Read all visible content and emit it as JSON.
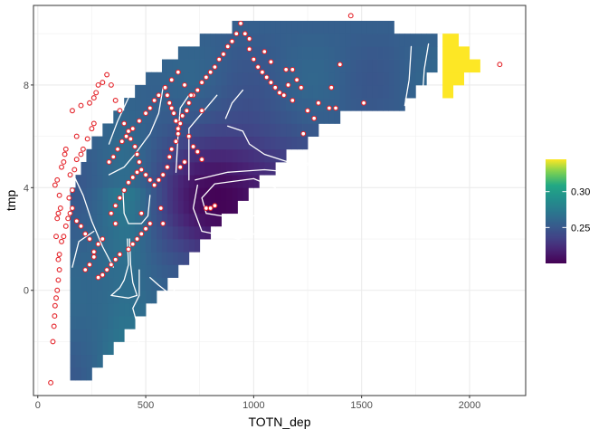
{
  "chart_data": {
    "type": "heatmap",
    "subtype": "raster-with-contours-and-points",
    "xlabel": "TOTN_dep",
    "ylabel": "tmp",
    "xlim": [
      -20,
      2260
    ],
    "ylim": [
      -4.1,
      11.1
    ],
    "x_ticks": [
      0,
      500,
      1000,
      1500,
      2000
    ],
    "y_ticks": [
      0,
      4,
      8
    ],
    "grid": true,
    "legend": {
      "position": "right",
      "type": "colorbar",
      "colormap": "viridis",
      "range": [
        0.2,
        0.345
      ],
      "ticks": [
        0.25,
        0.3
      ],
      "tick_labels": [
        "0.25",
        "0.30"
      ]
    },
    "cell_size": {
      "x": 25,
      "y": 0.5
    },
    "domain_rows": [
      {
        "y": -3.5,
        "x0": 150,
        "x1": 250
      },
      {
        "y": -3.0,
        "x0": 150,
        "x1": 300
      },
      {
        "y": -2.5,
        "x0": 150,
        "x1": 350
      },
      {
        "y": -2.0,
        "x0": 150,
        "x1": 400
      },
      {
        "y": -1.5,
        "x0": 150,
        "x1": 450
      },
      {
        "y": -1.0,
        "x0": 150,
        "x1": 500
      },
      {
        "y": -0.5,
        "x0": 150,
        "x1": 550
      },
      {
        "y": 0.0,
        "x0": 150,
        "x1": 600
      },
      {
        "y": 0.5,
        "x0": 150,
        "x1": 650
      },
      {
        "y": 1.0,
        "x0": 150,
        "x1": 700
      },
      {
        "y": 1.5,
        "x0": 150,
        "x1": 750
      },
      {
        "y": 2.0,
        "x0": 150,
        "x1": 800
      },
      {
        "y": 2.5,
        "x0": 150,
        "x1": 850
      },
      {
        "y": 3.0,
        "x0": 150,
        "x1": 925
      },
      {
        "y": 3.5,
        "x0": 150,
        "x1": 975
      },
      {
        "y": 4.0,
        "x0": 175,
        "x1": 1025
      },
      {
        "y": 4.5,
        "x0": 200,
        "x1": 1100
      },
      {
        "y": 5.0,
        "x0": 225,
        "x1": 1150
      },
      {
        "y": 5.5,
        "x0": 250,
        "x1": 1250
      },
      {
        "y": 6.0,
        "x0": 300,
        "x1": 1300
      },
      {
        "y": 6.5,
        "x0": 350,
        "x1": 1400
      },
      {
        "y": 7.0,
        "x0": 400,
        "x1": 1700
      },
      {
        "y": 7.5,
        "x0": 450,
        "x1": 1750
      },
      {
        "y": 8.0,
        "x0": 500,
        "x1": 1800
      },
      {
        "y": 8.5,
        "x0": 575,
        "x1": 1850
      },
      {
        "y": 9.0,
        "x0": 650,
        "x1": 1850
      },
      {
        "y": 9.5,
        "x0": 750,
        "x1": 1850
      },
      {
        "y": 10.0,
        "x0": 900,
        "x1": 1650
      }
    ],
    "yellow_region_rows": [
      {
        "y": 7.5,
        "x0": 1875,
        "x1": 1925
      },
      {
        "y": 8.0,
        "x0": 1875,
        "x1": 1975
      },
      {
        "y": 8.5,
        "x0": 1875,
        "x1": 2050
      },
      {
        "y": 9.0,
        "x0": 1875,
        "x1": 2000
      },
      {
        "y": 9.5,
        "x0": 1875,
        "x1": 1950
      }
    ],
    "field_model": {
      "base": 0.255,
      "low_center": [
        900,
        3.5
      ],
      "low_depth": 0.055,
      "low_spread": [
        330,
        2.6
      ],
      "left_band_center": 420,
      "left_band_gain": 0.018
    },
    "contours": [
      [
        [
          780,
          3.0
        ],
        [
          760,
          3.6
        ],
        [
          820,
          4.15
        ],
        [
          1000,
          4.35
        ],
        [
          1100,
          4.0
        ],
        [
          1080,
          3.1
        ],
        [
          1000,
          2.9
        ],
        [
          850,
          2.9
        ],
        [
          780,
          3.0
        ]
      ],
      [
        [
          740,
          4.1
        ],
        [
          720,
          3.2
        ],
        [
          760,
          2.3
        ],
        [
          930,
          2.0
        ],
        [
          1150,
          2.6
        ]
      ],
      [
        [
          730,
          4.3
        ],
        [
          880,
          4.6
        ],
        [
          1050,
          4.7
        ],
        [
          1180,
          4.6
        ],
        [
          1300,
          5.1
        ],
        [
          1420,
          5.3
        ]
      ],
      [
        [
          700,
          4.3
        ],
        [
          700,
          6.3
        ],
        [
          760,
          6.9
        ],
        [
          830,
          7.6
        ]
      ],
      [
        [
          880,
          6.4
        ],
        [
          950,
          6.2
        ],
        [
          980,
          5.7
        ],
        [
          1050,
          5.3
        ],
        [
          1160,
          5.0
        ],
        [
          1260,
          4.95
        ]
      ],
      [
        [
          870,
          6.7
        ],
        [
          900,
          7.3
        ],
        [
          950,
          7.8
        ]
      ],
      [
        [
          1700,
          7.2
        ],
        [
          1720,
          8.2
        ],
        [
          1730,
          9.5
        ]
      ],
      [
        [
          1780,
          7.3
        ],
        [
          1790,
          8.6
        ],
        [
          1810,
          9.6
        ]
      ],
      [
        [
          415,
          2.0
        ],
        [
          420,
          1.0
        ],
        [
          400,
          0.4
        ],
        [
          380,
          0.1
        ],
        [
          340,
          -0.2
        ],
        [
          420,
          -0.3
        ],
        [
          460,
          -0.2
        ],
        [
          440,
          0.3
        ],
        [
          430,
          1.0
        ],
        [
          425,
          2.0
        ]
      ],
      [
        [
          395,
          3.8
        ],
        [
          400,
          3.0
        ],
        [
          420,
          2.6
        ],
        [
          480,
          2.6
        ],
        [
          510,
          2.9
        ],
        [
          520,
          3.7
        ]
      ],
      [
        [
          330,
          4.5
        ],
        [
          400,
          4.8
        ],
        [
          450,
          5.3
        ],
        [
          520,
          6.1
        ],
        [
          560,
          6.9
        ],
        [
          580,
          7.9
        ]
      ],
      [
        [
          470,
          0.8
        ],
        [
          470,
          -0.2
        ],
        [
          440,
          -0.7
        ],
        [
          460,
          -1.3
        ],
        [
          470,
          -2.3
        ]
      ],
      [
        [
          260,
          2.3
        ],
        [
          190,
          1.9
        ],
        [
          160,
          0.9
        ]
      ],
      [
        [
          350,
          0.9
        ],
        [
          300,
          1.7
        ],
        [
          250,
          2.7
        ],
        [
          210,
          3.7
        ],
        [
          160,
          4.6
        ]
      ],
      [
        [
          520,
          0.5
        ],
        [
          560,
          0.2
        ],
        [
          620,
          -0.2
        ],
        [
          660,
          0.5
        ]
      ],
      [
        [
          640,
          4.6
        ],
        [
          650,
          6.1
        ],
        [
          660,
          7.1
        ],
        [
          700,
          7.6
        ]
      ],
      [
        [
          330,
          5.7
        ],
        [
          370,
          6.6
        ],
        [
          420,
          7.5
        ]
      ]
    ],
    "points": [
      [
        60,
        -3.6
      ],
      [
        70,
        -2.0
      ],
      [
        75,
        -1.4
      ],
      [
        78,
        -1.0
      ],
      [
        80,
        -0.6
      ],
      [
        85,
        -0.3
      ],
      [
        90,
        0.0
      ],
      [
        95,
        0.4
      ],
      [
        100,
        0.8
      ],
      [
        95,
        1.2
      ],
      [
        100,
        1.4
      ],
      [
        85,
        2.1
      ],
      [
        90,
        2.8
      ],
      [
        95,
        3.0
      ],
      [
        105,
        3.2
      ],
      [
        100,
        3.7
      ],
      [
        80,
        4.1
      ],
      [
        90,
        4.3
      ],
      [
        110,
        4.8
      ],
      [
        120,
        5.0
      ],
      [
        125,
        5.3
      ],
      [
        130,
        5.5
      ],
      [
        110,
        1.9
      ],
      [
        120,
        2.1
      ],
      [
        130,
        2.5
      ],
      [
        140,
        2.8
      ],
      [
        150,
        3.0
      ],
      [
        160,
        3.2
      ],
      [
        145,
        3.6
      ],
      [
        160,
        3.9
      ],
      [
        150,
        4.5
      ],
      [
        170,
        4.7
      ],
      [
        180,
        5.1
      ],
      [
        200,
        5.3
      ],
      [
        210,
        5.5
      ],
      [
        230,
        5.9
      ],
      [
        250,
        6.3
      ],
      [
        260,
        6.5
      ],
      [
        180,
        6.0
      ],
      [
        160,
        7.0
      ],
      [
        200,
        7.2
      ],
      [
        240,
        7.3
      ],
      [
        260,
        7.5
      ],
      [
        270,
        7.7
      ],
      [
        280,
        8.0
      ],
      [
        300,
        8.1
      ],
      [
        320,
        8.4
      ],
      [
        340,
        8.0
      ],
      [
        360,
        7.4
      ],
      [
        380,
        7.0
      ],
      [
        400,
        6.5
      ],
      [
        420,
        6.2
      ],
      [
        430,
        5.9
      ],
      [
        450,
        5.6
      ],
      [
        460,
        5.3
      ],
      [
        470,
        5.0
      ],
      [
        480,
        4.7
      ],
      [
        500,
        4.5
      ],
      [
        520,
        4.3
      ],
      [
        540,
        4.1
      ],
      [
        560,
        4.3
      ],
      [
        580,
        4.5
      ],
      [
        600,
        4.8
      ],
      [
        610,
        5.2
      ],
      [
        620,
        5.5
      ],
      [
        640,
        5.8
      ],
      [
        650,
        6.1
      ],
      [
        660,
        6.5
      ],
      [
        670,
        6.8
      ],
      [
        690,
        7.0
      ],
      [
        700,
        7.3
      ],
      [
        720,
        7.6
      ],
      [
        740,
        7.8
      ],
      [
        760,
        8.1
      ],
      [
        780,
        8.3
      ],
      [
        800,
        8.5
      ],
      [
        820,
        8.7
      ],
      [
        840,
        9.0
      ],
      [
        860,
        9.2
      ],
      [
        880,
        9.5
      ],
      [
        900,
        9.7
      ],
      [
        920,
        10.0
      ],
      [
        940,
        10.4
      ],
      [
        960,
        10.0
      ],
      [
        980,
        9.4
      ],
      [
        1000,
        9.0
      ],
      [
        1020,
        8.7
      ],
      [
        1040,
        8.5
      ],
      [
        1060,
        8.3
      ],
      [
        1080,
        8.1
      ],
      [
        1100,
        7.9
      ],
      [
        1120,
        7.7
      ],
      [
        1140,
        7.6
      ],
      [
        1160,
        8.0
      ],
      [
        1180,
        7.4
      ],
      [
        1200,
        8.2
      ],
      [
        1220,
        7.9
      ],
      [
        1250,
        7.0
      ],
      [
        1280,
        6.7
      ],
      [
        1300,
        7.3
      ],
      [
        1350,
        7.1
      ],
      [
        1380,
        7.1
      ],
      [
        1400,
        8.8
      ],
      [
        1450,
        10.7
      ],
      [
        2140,
        8.8
      ],
      [
        1510,
        7.3
      ],
      [
        1360,
        7.9
      ],
      [
        1230,
        6.1
      ],
      [
        1180,
        8.6
      ],
      [
        1150,
        8.6
      ],
      [
        1080,
        8.9
      ],
      [
        1050,
        9.3
      ],
      [
        980,
        9.8
      ],
      [
        780,
        3.2
      ],
      [
        800,
        3.2
      ],
      [
        820,
        3.3
      ],
      [
        600,
        7.6
      ],
      [
        610,
        7.3
      ],
      [
        620,
        7.1
      ],
      [
        630,
        6.9
      ],
      [
        640,
        6.6
      ],
      [
        650,
        6.3
      ],
      [
        700,
        6.0
      ],
      [
        720,
        5.6
      ],
      [
        740,
        5.4
      ],
      [
        760,
        5.1
      ],
      [
        680,
        5.0
      ],
      [
        660,
        4.8
      ],
      [
        570,
        3.2
      ],
      [
        580,
        2.6
      ],
      [
        520,
        2.6
      ],
      [
        500,
        2.4
      ],
      [
        480,
        2.2
      ],
      [
        460,
        2.0
      ],
      [
        440,
        1.8
      ],
      [
        420,
        1.6
      ],
      [
        380,
        1.4
      ],
      [
        360,
        1.2
      ],
      [
        340,
        1.0
      ],
      [
        320,
        0.8
      ],
      [
        300,
        0.6
      ],
      [
        280,
        0.5
      ],
      [
        260,
        1.5
      ],
      [
        240,
        2.0
      ],
      [
        220,
        2.2
      ],
      [
        200,
        2.5
      ],
      [
        180,
        2.7
      ],
      [
        340,
        3.0
      ],
      [
        360,
        3.3
      ],
      [
        380,
        3.6
      ],
      [
        400,
        3.9
      ],
      [
        420,
        4.2
      ],
      [
        440,
        4.4
      ],
      [
        460,
        4.6
      ],
      [
        480,
        3.0
      ],
      [
        360,
        2.6
      ],
      [
        300,
        2.0
      ],
      [
        280,
        1.8
      ],
      [
        260,
        1.3
      ],
      [
        240,
        1.0
      ],
      [
        220,
        0.8
      ],
      [
        330,
        5.0
      ],
      [
        350,
        5.2
      ],
      [
        370,
        5.5
      ],
      [
        390,
        5.8
      ],
      [
        410,
        6.0
      ],
      [
        440,
        6.3
      ],
      [
        470,
        6.6
      ],
      [
        500,
        6.9
      ],
      [
        520,
        7.1
      ],
      [
        540,
        7.4
      ],
      [
        560,
        7.6
      ],
      [
        590,
        7.9
      ],
      [
        620,
        8.2
      ],
      [
        650,
        8.5
      ],
      [
        680,
        8.0
      ],
      [
        710,
        7.6
      ],
      [
        760,
        7.0
      ]
    ]
  }
}
